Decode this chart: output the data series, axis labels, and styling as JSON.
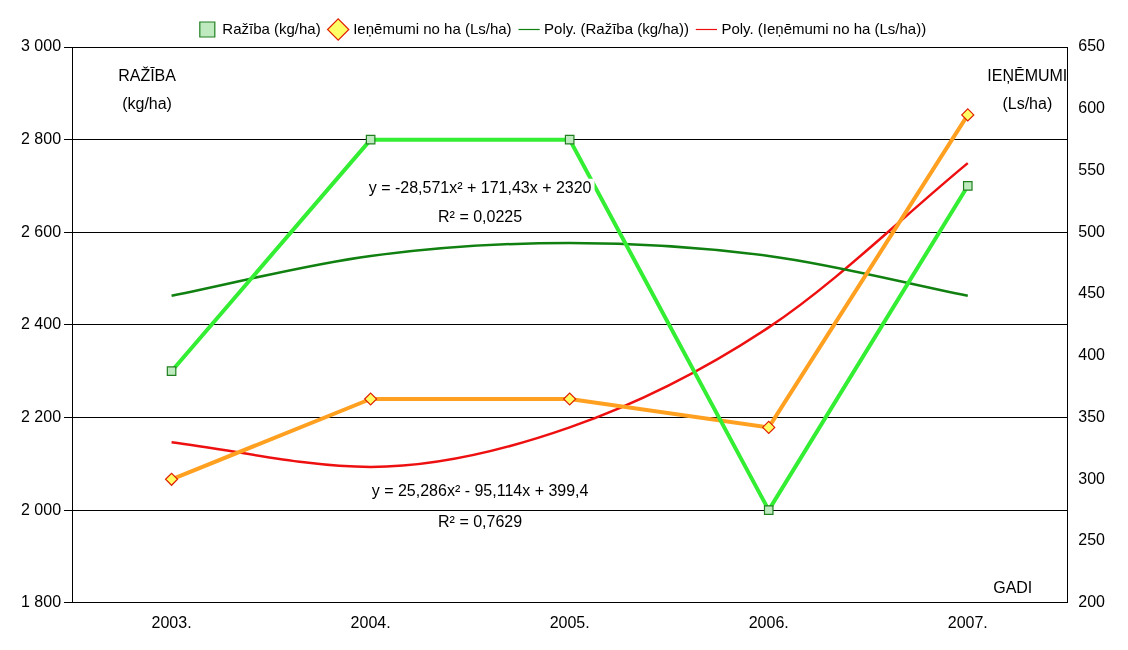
{
  "chart_data": {
    "type": "line",
    "categories": [
      "2003.",
      "2004.",
      "2005.",
      "2006.",
      "2007."
    ],
    "series": [
      {
        "name": "Ražība (kg/ha)",
        "color": "#33ee33",
        "values": [
          2300,
          2800,
          2800,
          2000,
          2700
        ],
        "marker": "square"
      },
      {
        "name": "Ieņēmumi no ha (Ls/ha)",
        "color": "#ffa020",
        "values": [
          300,
          365,
          365,
          342,
          595
        ],
        "axis": "y2",
        "marker": "diamond"
      },
      {
        "name": "Poly. (Ražība (kg/ha))",
        "color": "#108010",
        "values": [
          2463,
          2549,
          2577,
          2549,
          2463
        ],
        "marker": "none"
      },
      {
        "name": "Poly. (Ieņēmumi no ha (Ls/ha))",
        "color": "#ee1010",
        "values": [
          330,
          310,
          342,
          423,
          556
        ],
        "axis": "y2",
        "marker": "none"
      }
    ],
    "ylabel": "RAŽĪBA (kg/ha)",
    "y2label": "IEŅĒMUMI (Ls/ha)",
    "xlabel": "GADI",
    "ylim": [
      1800,
      3000
    ],
    "yticks": [
      {
        "value": 1800,
        "label": "1 800"
      },
      {
        "value": 2000,
        "label": "2 000"
      },
      {
        "value": 2200,
        "label": "2 200"
      },
      {
        "value": 2400,
        "label": "2 400"
      },
      {
        "value": 2600,
        "label": "2 600"
      },
      {
        "value": 2800,
        "label": "2 800"
      },
      {
        "value": 3000,
        "label": "3 000"
      }
    ],
    "y2lim": [
      200,
      650
    ],
    "y2ticks": [
      200,
      250,
      300,
      350,
      400,
      450,
      500,
      550,
      600,
      650
    ],
    "annotations": [
      "y = -28,571x² + 171,43x + 2320",
      "R² = 0,0225",
      "y = 25,286x² - 95,114x + 399,4",
      "R² = 0,7629"
    ],
    "grid": "y",
    "legend": "top",
    "line_style": "solid"
  }
}
